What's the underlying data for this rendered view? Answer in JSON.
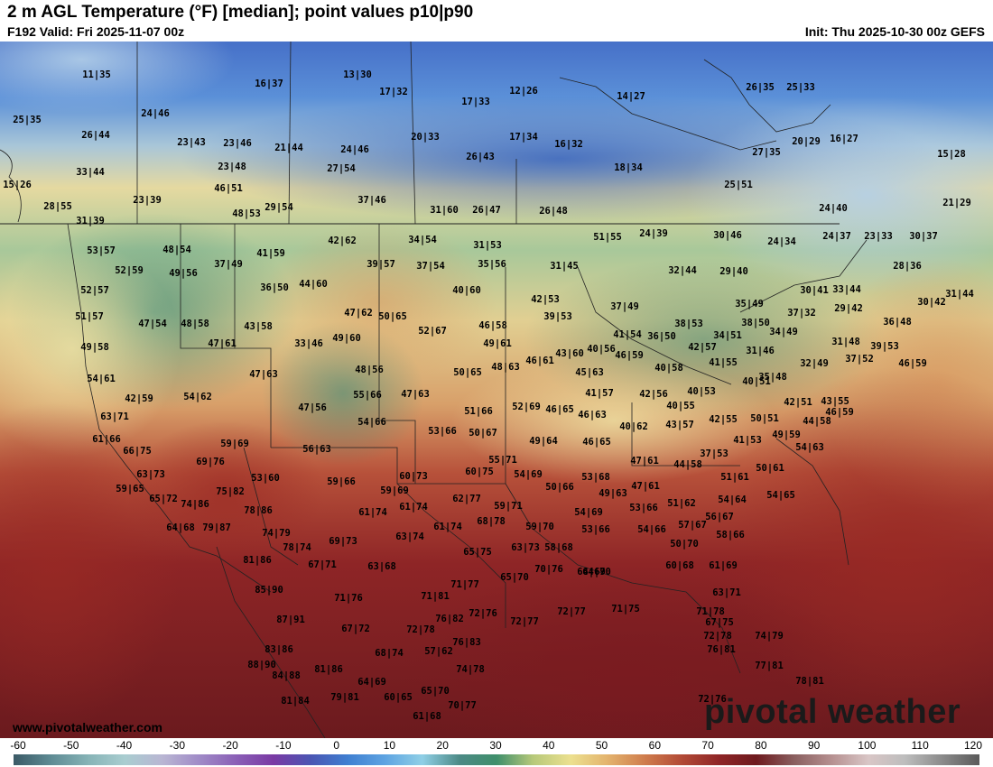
{
  "header": {
    "title": "2 m AGL Temperature (°F) [median]; point values p10|p90",
    "valid": "F192 Valid: Fri 2025-11-07 00z",
    "init": "Init: Thu 2025-10-30 00z GEFS"
  },
  "watermark": "www.pivotalweather.com",
  "brand": "pivotal weather",
  "colorbar": {
    "ticks": [
      "-60",
      "-50",
      "-40",
      "-30",
      "-20",
      "-10",
      "0",
      "10",
      "20",
      "30",
      "40",
      "50",
      "60",
      "70",
      "80",
      "90",
      "100",
      "110",
      "120"
    ],
    "colors": [
      "#3b5a66",
      "#5d8a93",
      "#86b3b6",
      "#a9cdd0",
      "#b9b6d3",
      "#a08bc7",
      "#8a5fb6",
      "#7a3aa4",
      "#4a56b3",
      "#3f7fd1",
      "#5ea4e2",
      "#8fcfe6",
      "#4c8a86",
      "#3f8f6b",
      "#b7c97a",
      "#ece08f",
      "#e3b36d",
      "#cf7c4c",
      "#b24a36",
      "#8e2526",
      "#6e1a1e",
      "#8a5f5f",
      "#b58f8f",
      "#d9c6c6",
      "#bdbdbd",
      "#8a8a8a",
      "#5a5a5a"
    ]
  },
  "points": [
    {
      "text": "11|35"
    },
    {
      "text": "16|37"
    },
    {
      "text": "13|30"
    },
    {
      "text": "17|32"
    },
    {
      "text": "17|33"
    },
    {
      "text": "12|26"
    },
    {
      "text": "14|27"
    },
    {
      "text": "26|35"
    },
    {
      "text": "25|33"
    },
    {
      "text": "25|35"
    },
    {
      "text": "24|46"
    },
    {
      "text": "15|28"
    },
    {
      "text": "26|44"
    },
    {
      "text": "23|43"
    },
    {
      "text": "23|46"
    },
    {
      "text": "21|44"
    },
    {
      "text": "24|46"
    },
    {
      "text": "20|33"
    },
    {
      "text": "17|34"
    },
    {
      "text": "16|32"
    },
    {
      "text": "20|29"
    },
    {
      "text": "16|27"
    },
    {
      "text": "33|44"
    },
    {
      "text": "23|48"
    },
    {
      "text": "27|54"
    },
    {
      "text": "26|43"
    },
    {
      "text": "27|35"
    },
    {
      "text": "18|34"
    },
    {
      "text": "15|26"
    },
    {
      "text": "46|51"
    },
    {
      "text": "25|51"
    },
    {
      "text": "23|39"
    },
    {
      "text": "37|46"
    },
    {
      "text": "28|55"
    },
    {
      "text": "48|53"
    },
    {
      "text": "29|54"
    },
    {
      "text": "31|60"
    },
    {
      "text": "26|47"
    },
    {
      "text": "26|48"
    },
    {
      "text": "24|40"
    },
    {
      "text": "21|29"
    },
    {
      "text": "31|39"
    },
    {
      "text": "51|55"
    },
    {
      "text": "24|39"
    },
    {
      "text": "30|46"
    },
    {
      "text": "24|37"
    },
    {
      "text": "23|33"
    },
    {
      "text": "30|37"
    },
    {
      "text": "42|62"
    },
    {
      "text": "34|54"
    },
    {
      "text": "24|34"
    },
    {
      "text": "53|57"
    },
    {
      "text": "48|54"
    },
    {
      "text": "41|59"
    },
    {
      "text": "31|53"
    },
    {
      "text": "37|49"
    },
    {
      "text": "39|57"
    },
    {
      "text": "37|54"
    },
    {
      "text": "35|56"
    },
    {
      "text": "31|45"
    },
    {
      "text": "32|44"
    },
    {
      "text": "29|40"
    },
    {
      "text": "28|36"
    },
    {
      "text": "52|59"
    },
    {
      "text": "49|56"
    },
    {
      "text": "36|50"
    },
    {
      "text": "44|60"
    },
    {
      "text": "40|60"
    },
    {
      "text": "30|41"
    },
    {
      "text": "33|44"
    },
    {
      "text": "31|44"
    },
    {
      "text": "52|57"
    },
    {
      "text": "42|53"
    },
    {
      "text": "35|49"
    },
    {
      "text": "30|42"
    },
    {
      "text": "47|62"
    },
    {
      "text": "50|65"
    },
    {
      "text": "37|49"
    },
    {
      "text": "37|32"
    },
    {
      "text": "29|42"
    },
    {
      "text": "51|57"
    },
    {
      "text": "39|53"
    },
    {
      "text": "36|48"
    },
    {
      "text": "47|54"
    },
    {
      "text": "48|58"
    },
    {
      "text": "43|58"
    },
    {
      "text": "38|53"
    },
    {
      "text": "38|50"
    },
    {
      "text": "52|67"
    },
    {
      "text": "46|58"
    },
    {
      "text": "41|54"
    },
    {
      "text": "36|50"
    },
    {
      "text": "34|51"
    },
    {
      "text": "34|49"
    },
    {
      "text": "31|48"
    },
    {
      "text": "39|53"
    },
    {
      "text": "49|58"
    },
    {
      "text": "47|61"
    },
    {
      "text": "33|46"
    },
    {
      "text": "49|60"
    },
    {
      "text": "49|61"
    },
    {
      "text": "43|60"
    },
    {
      "text": "40|56"
    },
    {
      "text": "42|57"
    },
    {
      "text": "31|46"
    },
    {
      "text": "37|52"
    },
    {
      "text": "46|59"
    },
    {
      "text": "54|61"
    },
    {
      "text": "47|63"
    },
    {
      "text": "48|56"
    },
    {
      "text": "50|65"
    },
    {
      "text": "48|63"
    },
    {
      "text": "46|61"
    },
    {
      "text": "45|63"
    },
    {
      "text": "46|59"
    },
    {
      "text": "40|58"
    },
    {
      "text": "41|55"
    },
    {
      "text": "32|49"
    },
    {
      "text": "40|51"
    },
    {
      "text": "42|59"
    },
    {
      "text": "54|62"
    },
    {
      "text": "55|66"
    },
    {
      "text": "47|63"
    },
    {
      "text": "41|57"
    },
    {
      "text": "42|56"
    },
    {
      "text": "40|53"
    },
    {
      "text": "35|48"
    },
    {
      "text": "46|59"
    },
    {
      "text": "47|56"
    },
    {
      "text": "51|66"
    },
    {
      "text": "52|69"
    },
    {
      "text": "46|65"
    },
    {
      "text": "40|55"
    },
    {
      "text": "42|51"
    },
    {
      "text": "43|55"
    },
    {
      "text": "63|71"
    },
    {
      "text": "54|66"
    },
    {
      "text": "46|63"
    },
    {
      "text": "43|57"
    },
    {
      "text": "42|55"
    },
    {
      "text": "50|51"
    },
    {
      "text": "44|58"
    },
    {
      "text": "53|66"
    },
    {
      "text": "50|67"
    },
    {
      "text": "40|62"
    },
    {
      "text": "61|66"
    },
    {
      "text": "59|69"
    },
    {
      "text": "49|64"
    },
    {
      "text": "46|65"
    },
    {
      "text": "41|53"
    },
    {
      "text": "49|59"
    },
    {
      "text": "66|75"
    },
    {
      "text": "56|63"
    },
    {
      "text": "37|53"
    },
    {
      "text": "54|63"
    },
    {
      "text": "69|76"
    },
    {
      "text": "47|61"
    },
    {
      "text": "44|58"
    },
    {
      "text": "50|61"
    },
    {
      "text": "55|71"
    },
    {
      "text": "63|73"
    },
    {
      "text": "53|60"
    },
    {
      "text": "60|73"
    },
    {
      "text": "60|75"
    },
    {
      "text": "54|69"
    },
    {
      "text": "53|68"
    },
    {
      "text": "51|61"
    },
    {
      "text": "59|66"
    },
    {
      "text": "59|65"
    },
    {
      "text": "75|82"
    },
    {
      "text": "50|66"
    },
    {
      "text": "47|61"
    },
    {
      "text": "59|69"
    },
    {
      "text": "49|63"
    },
    {
      "text": "54|64"
    },
    {
      "text": "54|65"
    },
    {
      "text": "65|72"
    },
    {
      "text": "74|86"
    },
    {
      "text": "62|77"
    },
    {
      "text": "51|62"
    },
    {
      "text": "78|86"
    },
    {
      "text": "61|74"
    },
    {
      "text": "61|74"
    },
    {
      "text": "59|71"
    },
    {
      "text": "54|69"
    },
    {
      "text": "53|66"
    },
    {
      "text": "56|67"
    },
    {
      "text": "64|68"
    },
    {
      "text": "79|87"
    },
    {
      "text": "68|78"
    },
    {
      "text": "74|79"
    },
    {
      "text": "61|74"
    },
    {
      "text": "59|70"
    },
    {
      "text": "53|66"
    },
    {
      "text": "54|66"
    },
    {
      "text": "57|67"
    },
    {
      "text": "63|74"
    },
    {
      "text": "58|66"
    },
    {
      "text": "78|74"
    },
    {
      "text": "69|73"
    },
    {
      "text": "65|75"
    },
    {
      "text": "63|73"
    },
    {
      "text": "58|68"
    },
    {
      "text": "50|70"
    },
    {
      "text": "81|86"
    },
    {
      "text": "67|71"
    },
    {
      "text": "63|68"
    },
    {
      "text": "64|70"
    },
    {
      "text": "60|68"
    },
    {
      "text": "61|69"
    },
    {
      "text": "65|70"
    },
    {
      "text": "64|69"
    },
    {
      "text": "70|76"
    },
    {
      "text": "85|90"
    },
    {
      "text": "71|77"
    },
    {
      "text": "63|71"
    },
    {
      "text": "71|76"
    },
    {
      "text": "71|81"
    },
    {
      "text": "72|76"
    },
    {
      "text": "72|77"
    },
    {
      "text": "72|77"
    },
    {
      "text": "71|75"
    },
    {
      "text": "71|78"
    },
    {
      "text": "87|91"
    },
    {
      "text": "76|82"
    },
    {
      "text": "67|75"
    },
    {
      "text": "67|72"
    },
    {
      "text": "72|78"
    },
    {
      "text": "72|78"
    },
    {
      "text": "74|79"
    },
    {
      "text": "83|86"
    },
    {
      "text": "68|74"
    },
    {
      "text": "57|62"
    },
    {
      "text": "76|83"
    },
    {
      "text": "76|81"
    },
    {
      "text": "88|90"
    },
    {
      "text": "81|86"
    },
    {
      "text": "74|78"
    },
    {
      "text": "77|81"
    },
    {
      "text": "84|88"
    },
    {
      "text": "64|69"
    },
    {
      "text": "78|81"
    },
    {
      "text": "65|70"
    },
    {
      "text": "79|81"
    },
    {
      "text": "60|65"
    },
    {
      "text": "81|84"
    },
    {
      "text": "70|77"
    },
    {
      "text": "72|76"
    },
    {
      "text": "61|68"
    }
  ]
}
